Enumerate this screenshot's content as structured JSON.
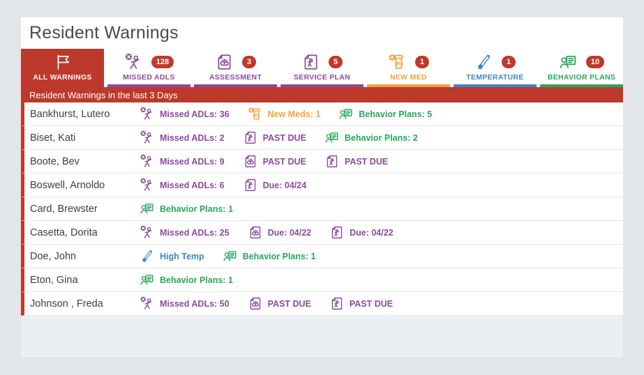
{
  "header": {
    "title": "Resident Warnings"
  },
  "section": {
    "header": "Resident Warnings in the last 3 Days"
  },
  "colors": {
    "accent_red": "#bc392b",
    "badge_red": "#c0392b",
    "purple": "#8c4a9e",
    "orange": "#f2a338",
    "blue": "#3c87c4",
    "green": "#27a75b",
    "page_bg": "#e2e5e9",
    "footer_bg": "#eceff1"
  },
  "tabs": [
    {
      "id": "all-warnings",
      "label": "ALL WARNINGS",
      "icon": "flag-icon",
      "count": null,
      "color": "#bc392b",
      "selected": true
    },
    {
      "id": "missed-adls",
      "label": "MISSED ADLS",
      "icon": "missed-adls-icon",
      "count": "128",
      "color": "#8c4a9e",
      "selected": false
    },
    {
      "id": "assessment",
      "label": "ASSESSMENT",
      "icon": "assessment-icon",
      "count": "3",
      "color": "#8c4a9e",
      "selected": false
    },
    {
      "id": "service-plan",
      "label": "SERVICE PLAN",
      "icon": "service-plan-icon",
      "count": "5",
      "color": "#8c4a9e",
      "selected": false
    },
    {
      "id": "new-med",
      "label": "NEW MED",
      "icon": "new-med-icon",
      "count": "1",
      "color": "#f2a338",
      "selected": false
    },
    {
      "id": "temperature",
      "label": "TEMPERATURE",
      "icon": "temperature-icon",
      "count": "1",
      "color": "#3c87c4",
      "selected": false
    },
    {
      "id": "behavior-plans",
      "label": "BEHAVIOR PLANS",
      "icon": "behavior-plans-icon",
      "count": "10",
      "color": "#27a75b",
      "selected": false
    }
  ],
  "warning_type_colors": {
    "missed-adls": "#8c4a9e",
    "assessment": "#8c4a9e",
    "service-plan": "#8c4a9e",
    "new-med": "#f2a338",
    "temperature": "#3c87c4",
    "behavior-plans": "#27a75b"
  },
  "residents": [
    {
      "name": "Bankhurst, Lutero",
      "warnings": [
        {
          "type": "missed-adls",
          "label": "Missed ADLs: 36"
        },
        {
          "type": "new-med",
          "label": "New Meds: 1"
        },
        {
          "type": "behavior-plans",
          "label": "Behavior Plans: 5"
        }
      ]
    },
    {
      "name": "Biset, Kati",
      "warnings": [
        {
          "type": "missed-adls",
          "label": "Missed ADLs: 2"
        },
        {
          "type": "service-plan",
          "label": "PAST DUE"
        },
        {
          "type": "behavior-plans",
          "label": "Behavior Plans: 2"
        }
      ]
    },
    {
      "name": "Boote, Bev",
      "warnings": [
        {
          "type": "missed-adls",
          "label": "Missed ADLs: 9"
        },
        {
          "type": "assessment",
          "label": "PAST DUE"
        },
        {
          "type": "service-plan",
          "label": "PAST DUE"
        }
      ]
    },
    {
      "name": "Boswell, Arnoldo",
      "warnings": [
        {
          "type": "missed-adls",
          "label": "Missed ADLs: 6"
        },
        {
          "type": "service-plan",
          "label": "Due: 04/24"
        }
      ]
    },
    {
      "name": "Card, Brewster",
      "warnings": [
        {
          "type": "behavior-plans",
          "label": "Behavior Plans: 1"
        }
      ]
    },
    {
      "name": "Casetta, Dorita",
      "warnings": [
        {
          "type": "missed-adls",
          "label": "Missed ADLs: 25"
        },
        {
          "type": "assessment",
          "label": "Due: 04/22"
        },
        {
          "type": "service-plan",
          "label": "Due: 04/22"
        }
      ]
    },
    {
      "name": "Doe, John",
      "warnings": [
        {
          "type": "temperature",
          "label": "High Temp"
        },
        {
          "type": "behavior-plans",
          "label": "Behavior Plans: 1"
        }
      ]
    },
    {
      "name": "Eton, Gina",
      "warnings": [
        {
          "type": "behavior-plans",
          "label": "Behavior Plans: 1"
        }
      ]
    },
    {
      "name": "Johnson , Freda",
      "warnings": [
        {
          "type": "missed-adls",
          "label": "Missed ADLs: 50"
        },
        {
          "type": "assessment",
          "label": "PAST DUE"
        },
        {
          "type": "service-plan",
          "label": "PAST DUE"
        }
      ]
    }
  ]
}
